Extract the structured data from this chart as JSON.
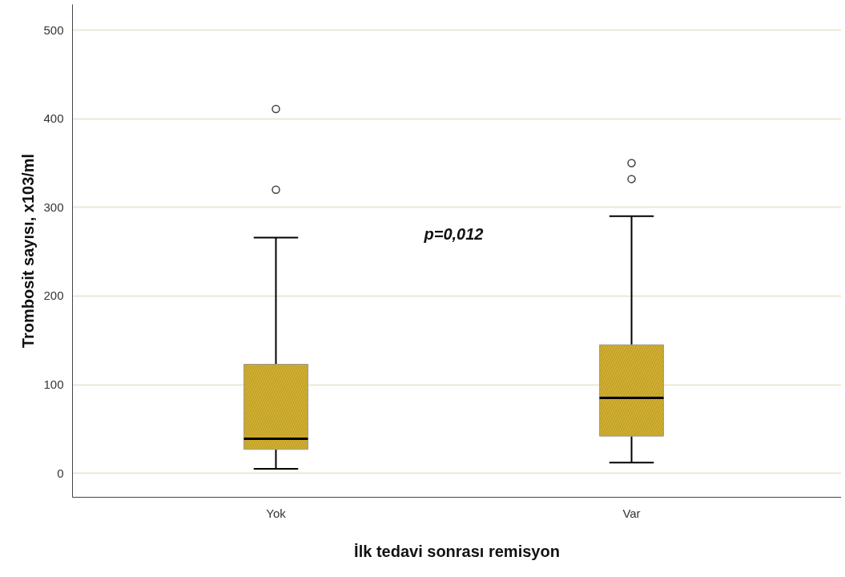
{
  "chart_data": {
    "type": "box",
    "categories": [
      "Yok",
      "Var"
    ],
    "xlabel": "İlk tedavi sonrası remisyon",
    "ylabel": "Trombosit sayısı, x103/ml",
    "boxes": [
      {
        "low": 5,
        "q1": 27,
        "median": 39,
        "q3": 123,
        "high": 266,
        "outliers": [
          320,
          411
        ]
      },
      {
        "low": 12,
        "q1": 42,
        "median": 85,
        "q3": 145,
        "high": 290,
        "outliers": [
          332,
          350
        ]
      }
    ],
    "color": "#d4b02a",
    "ylim": [
      -27,
      529
    ],
    "yticks": [
      0,
      100,
      200,
      300,
      400,
      500
    ],
    "grid": "y",
    "annotations": [
      "p=0,012"
    ]
  }
}
